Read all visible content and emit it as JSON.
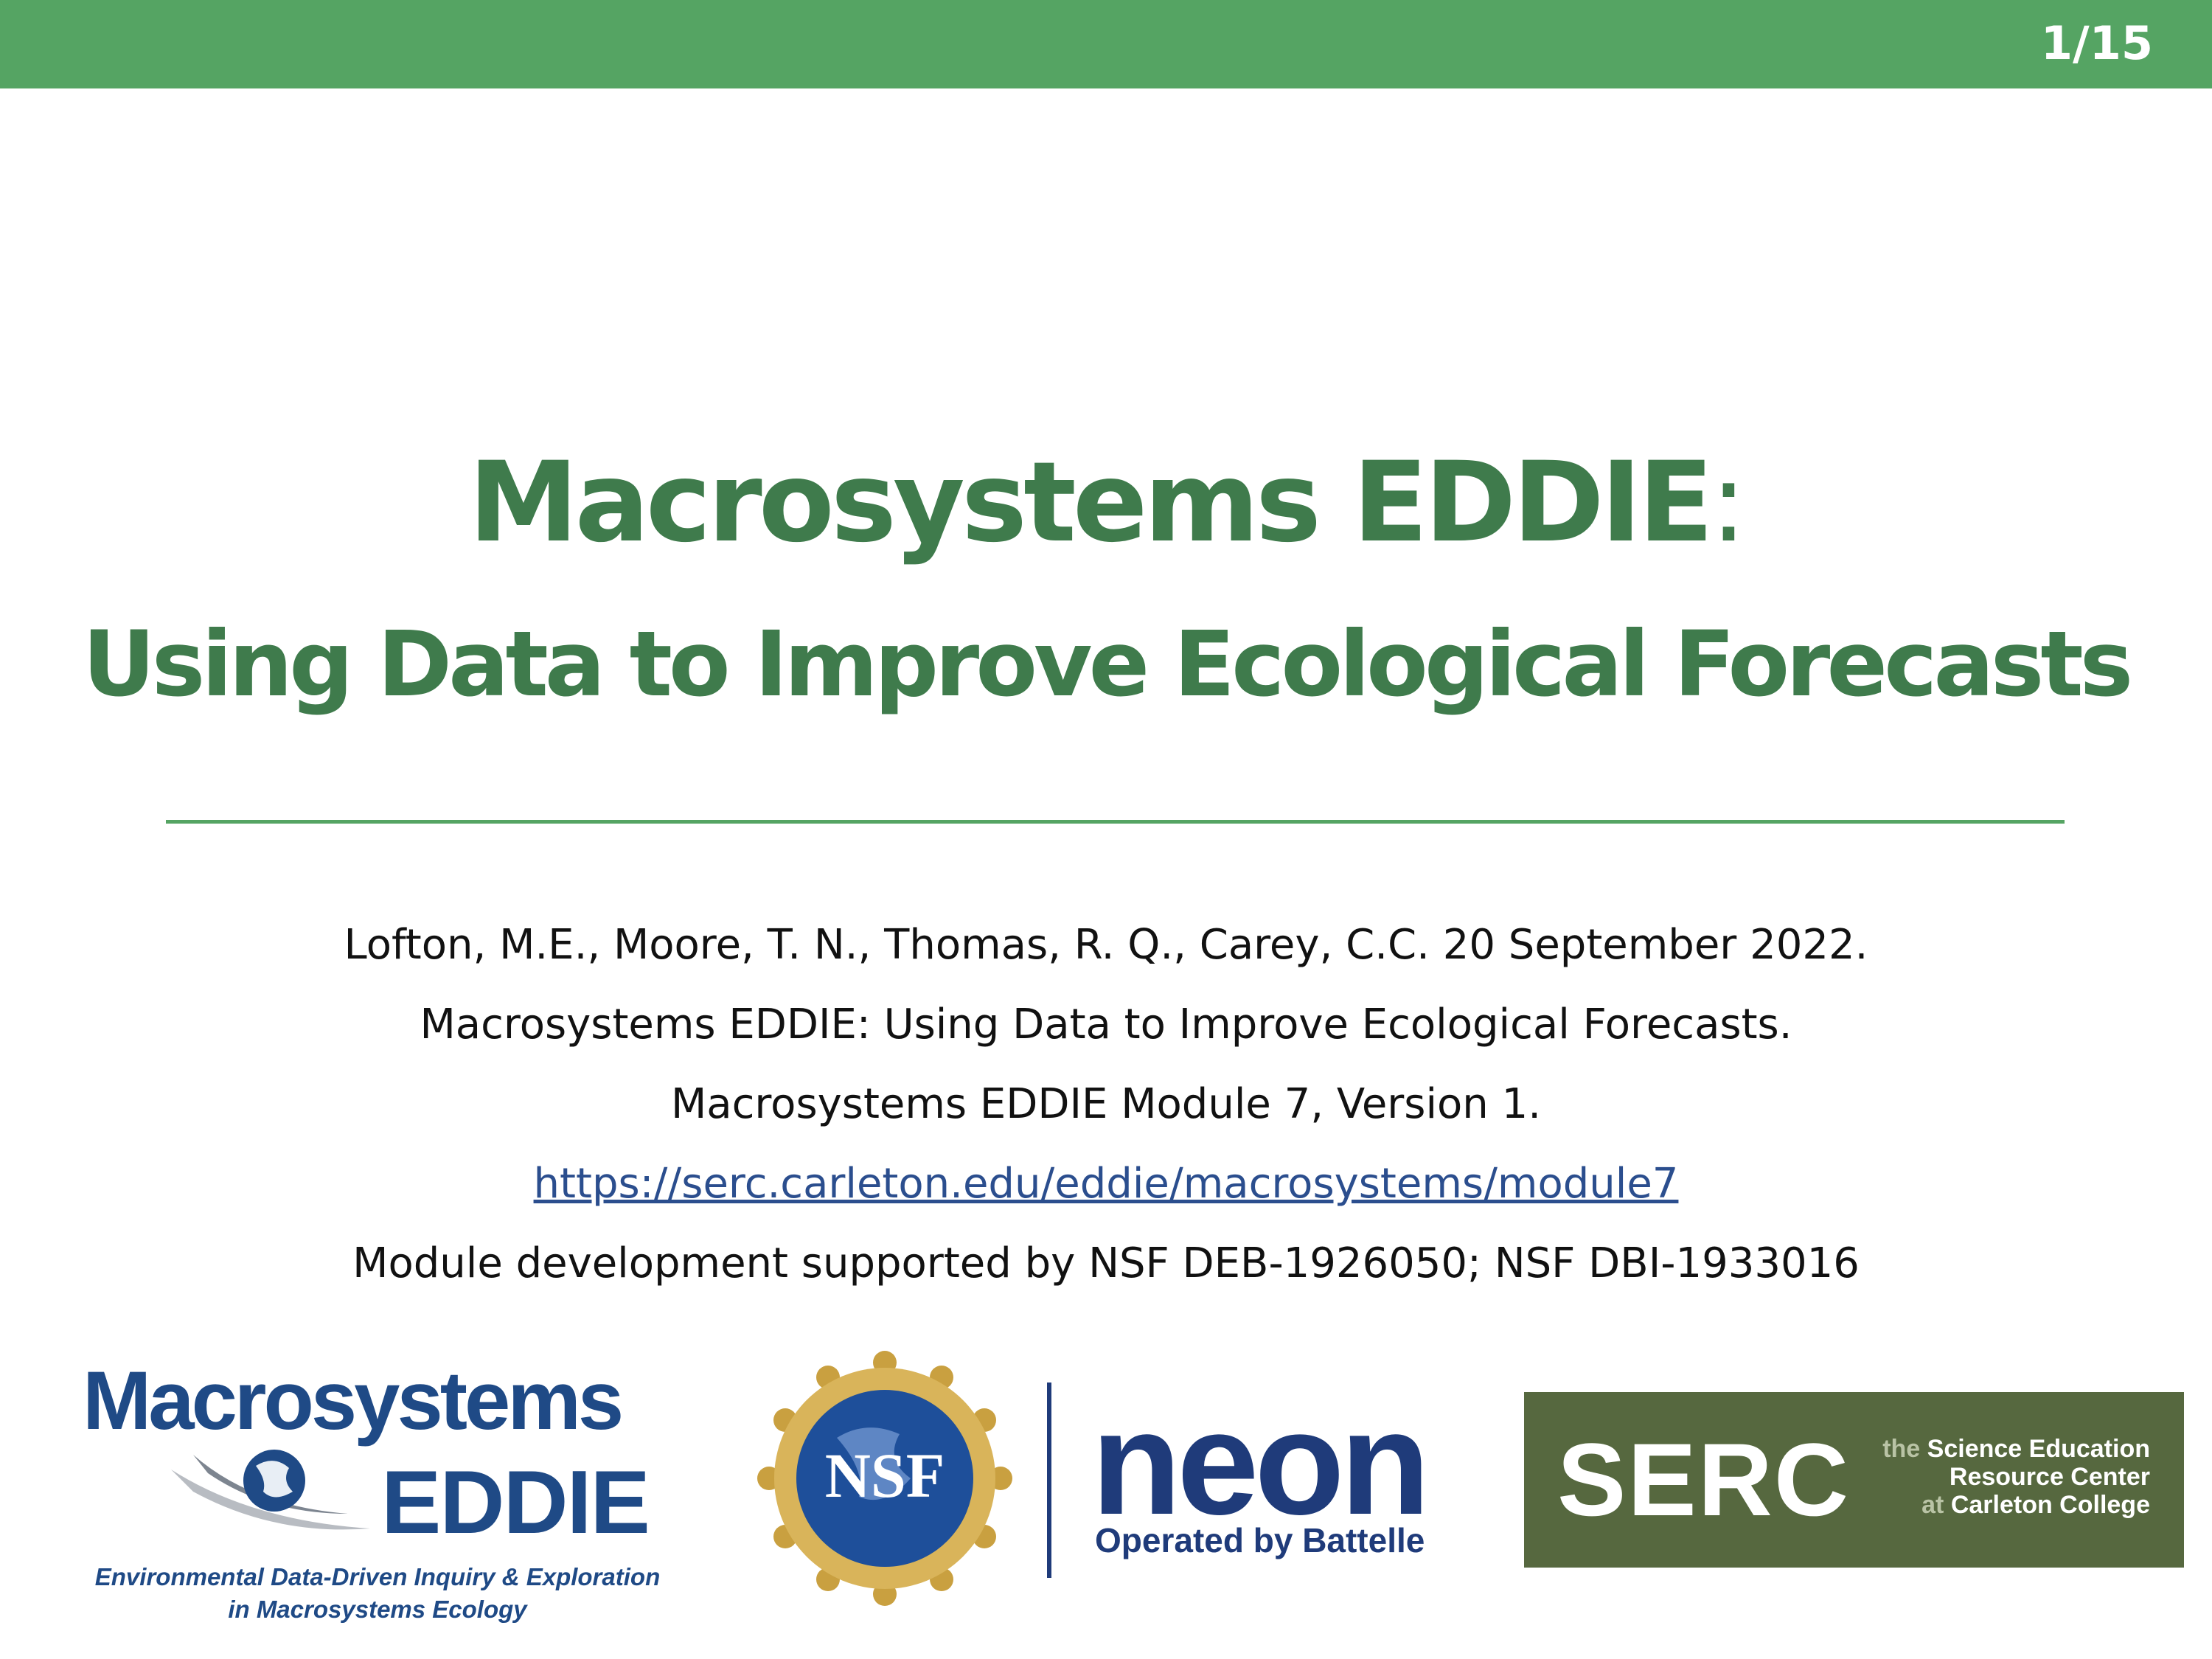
{
  "header": {
    "slide_number": "1/15"
  },
  "title": {
    "line1": "Macrosystems EDDIE",
    "line1_colon": ":",
    "line2": "Using Data to Improve Ecological Forecasts"
  },
  "citation": {
    "line1": "Lofton, M.E., Moore, T. N., Thomas, R. Q., Carey, C.C. 20 September 2022.",
    "line2": "Macrosystems EDDIE: Using Data to Improve Ecological Forecasts.",
    "line3": "Macrosystems EDDIE Module 7, Version 1.",
    "link": "https://serc.carleton.edu/eddie/macrosystems/module7",
    "funding": "Module development supported by NSF DEB-1926050; NSF DBI-1933016"
  },
  "logos": {
    "eddie": {
      "word1": "Macrosystems",
      "word2": "EDDIE",
      "tagline1": "Environmental Data-Driven Inquiry & Exploration",
      "tagline2": "in Macrosystems Ecology"
    },
    "nsf": {
      "text": "NSF"
    },
    "neon": {
      "word": "neon",
      "tagline": "Operated by Battelle"
    },
    "serc": {
      "word": "SERC",
      "line1_prefix": "the",
      "line1_main": "Science Education",
      "line2": "Resource Center",
      "line3_prefix": "at",
      "line3_main": "Carleton College"
    }
  },
  "colors": {
    "accent_green": "#55a463",
    "title_green": "#3f7b4c",
    "navy": "#1f3b7a",
    "link_blue": "#2b4e8e",
    "serc_olive": "#56683f"
  }
}
